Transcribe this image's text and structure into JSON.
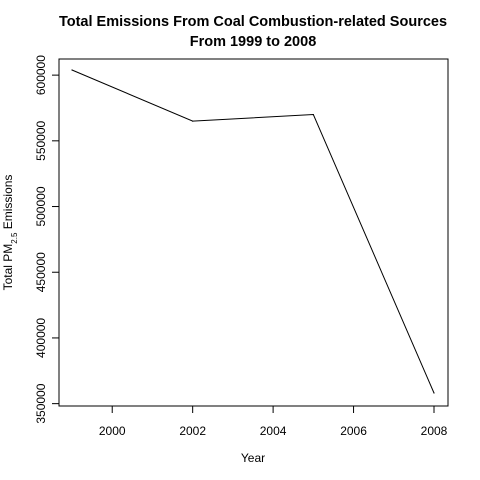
{
  "chart_data": {
    "type": "line",
    "title_line1": "Total Emissions From Coal Combustion-related Sources",
    "title_line2": "From 1999 to 2008",
    "xlabel": "Year",
    "ylabel_prefix": "Total PM",
    "ylabel_subscript": "2.5",
    "ylabel_suffix": " Emissions",
    "x": [
      1999,
      2002,
      2005,
      2008
    ],
    "y": [
      603900,
      565000,
      570000,
      358100
    ],
    "xlim": [
      1999,
      2008
    ],
    "ylim": [
      350000,
      610000
    ],
    "xticks": [
      2000,
      2002,
      2004,
      2006,
      2008
    ],
    "yticks": [
      350000,
      400000,
      450000,
      500000,
      550000,
      600000
    ],
    "grid": false,
    "line_color": "#000000"
  }
}
